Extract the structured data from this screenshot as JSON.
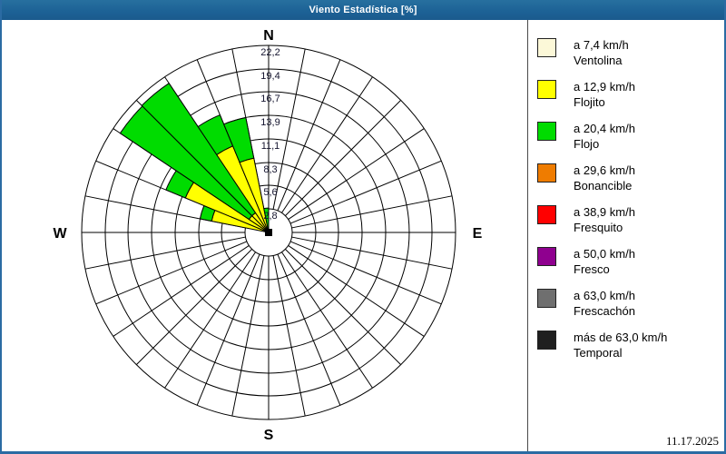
{
  "window": {
    "title": "Viento Estadística [%]",
    "date": "11.17.2025"
  },
  "chart_data": {
    "type": "windrose",
    "title": "Viento Estadística [%]",
    "units": "%",
    "legend_position": "right",
    "grid": true,
    "compass_labels": {
      "n": "N",
      "e": "E",
      "s": "S",
      "w": "W"
    },
    "ring_values": [
      2.8,
      5.6,
      8.3,
      11.1,
      13.9,
      16.7,
      19.4,
      22.2
    ],
    "ring_labels": [
      "2,8",
      "5,6",
      "8,3",
      "11,1",
      "13,9",
      "16,7",
      "19,4",
      "22,2"
    ],
    "max_value": 22.2,
    "sector_width_deg": 11.25,
    "spoke_count": 32,
    "classes": [
      {
        "key": "ventolina",
        "speed": "a 7,4 km/h",
        "name": "Ventolina",
        "color": "#fcf8d8"
      },
      {
        "key": "flojito",
        "speed": "a 12,9 km/h",
        "name": "Flojito",
        "color": "#ffff00"
      },
      {
        "key": "flojo",
        "speed": "a 20,4 km/h",
        "name": "Flojo",
        "color": "#00dc00"
      },
      {
        "key": "bonancible",
        "speed": "a 29,6 km/h",
        "name": "Bonancible",
        "color": "#ef7c00"
      },
      {
        "key": "fresquito",
        "speed": "a 38,9 km/h",
        "name": "Fresquito",
        "color": "#ff0000"
      },
      {
        "key": "fresco",
        "speed": "a 50,0 km/h",
        "name": "Fresco",
        "color": "#8f008f"
      },
      {
        "key": "frescachon",
        "speed": "a 63,0 km/h",
        "name": "Frescachón",
        "color": "#6f6f6f"
      },
      {
        "key": "temporal",
        "speed": "más de 63,0 km/h",
        "name": "Temporal",
        "color": "#1f1f1f"
      }
    ],
    "petals": [
      {
        "start_deg": 281.25,
        "end_deg": 292.5,
        "stack": [
          {
            "class": "flojito",
            "to": 6.9
          },
          {
            "class": "flojo",
            "to": 8.3
          }
        ]
      },
      {
        "start_deg": 292.5,
        "end_deg": 303.75,
        "stack": [
          {
            "class": "flojito",
            "to": 10.7
          },
          {
            "class": "flojo",
            "to": 13.2
          }
        ]
      },
      {
        "start_deg": 303.75,
        "end_deg": 315.0,
        "stack": [
          {
            "class": "flojito",
            "to": 2.8
          },
          {
            "class": "flojo",
            "to": 21.2
          }
        ]
      },
      {
        "start_deg": 315.0,
        "end_deg": 326.25,
        "stack": [
          {
            "class": "flojito",
            "to": 2.8
          },
          {
            "class": "flojo",
            "to": 21.3
          }
        ]
      },
      {
        "start_deg": 326.25,
        "end_deg": 337.5,
        "stack": [
          {
            "class": "flojito",
            "to": 11.1
          },
          {
            "class": "flojo",
            "to": 15.1
          }
        ]
      },
      {
        "start_deg": 337.5,
        "end_deg": 348.75,
        "stack": [
          {
            "class": "flojito",
            "to": 9.0
          },
          {
            "class": "flojo",
            "to": 13.9
          }
        ]
      },
      {
        "start_deg": 348.75,
        "end_deg": 360.0,
        "stack": [
          {
            "class": "flojo",
            "to": 2.9
          }
        ]
      }
    ]
  }
}
